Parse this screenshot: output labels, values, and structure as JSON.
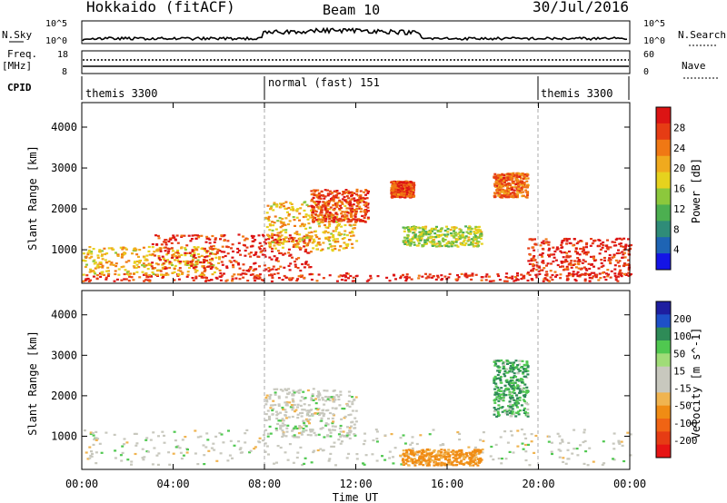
{
  "header": {
    "title": "Hokkaido (fitACF)",
    "beam": "Beam 10",
    "date": "30/Jul/2016"
  },
  "panels": {
    "nsky": {
      "left_label": "N.Sky",
      "right_label": "N.Search",
      "left_ticks": [
        "10^5",
        "10^0"
      ],
      "right_ticks": [
        "10^5",
        "10^0"
      ]
    },
    "freq": {
      "label_line1": "Freq.",
      "label_line2": "[MHz]",
      "right_label": "Nave",
      "left_ticks": [
        "18",
        "8"
      ],
      "right_ticks": [
        "60",
        "0"
      ]
    },
    "cpid": {
      "label": "CPID",
      "segments": [
        "themis 3300",
        "normal (fast) 151",
        "themis 3300"
      ]
    }
  },
  "axes": {
    "ylabel": "Slant Range [km]",
    "yticks": [
      "1000",
      "2000",
      "3000",
      "4000"
    ],
    "xlabel": "Time UT",
    "xticks": [
      "00:00",
      "04:00",
      "08:00",
      "12:00",
      "16:00",
      "20:00",
      "00:00"
    ]
  },
  "colorbars": {
    "power": {
      "label": "Power [dB]",
      "ticks": [
        "4",
        "8",
        "12",
        "16",
        "20",
        "24",
        "28"
      ],
      "colors": [
        "#1414e6",
        "#1e64b4",
        "#2f8c78",
        "#4caf50",
        "#8cc83c",
        "#e6d21e",
        "#f0aa1e",
        "#f07814",
        "#e63c14",
        "#dc1414"
      ]
    },
    "velocity": {
      "label": "Velocity [m s^-1]",
      "ticks": [
        "200",
        "100",
        "50",
        "15",
        "-15",
        "-50",
        "-100",
        "-200"
      ],
      "colors": [
        "#1e1ea0",
        "#1e50c8",
        "#2e8b57",
        "#50c850",
        "#a0dc78",
        "#c8c8be",
        "#c8c8be",
        "#f0b450",
        "#f08c14",
        "#f06414",
        "#e63c14",
        "#e61414"
      ]
    }
  },
  "chart_data": [
    {
      "type": "heatmap",
      "title": "",
      "xlabel": "Time UT",
      "ylabel": "Slant Range [km]",
      "xlim": [
        0,
        24
      ],
      "ylim": [
        180,
        4600
      ],
      "colorbar": "Power [dB]",
      "regions": [
        {
          "t": [
            0,
            24
          ],
          "r": [
            250,
            450
          ],
          "power": 26
        },
        {
          "t": [
            0,
            6
          ],
          "r": [
            400,
            1100
          ],
          "power": 18
        },
        {
          "t": [
            3,
            10
          ],
          "r": [
            500,
            1400
          ],
          "power": 26
        },
        {
          "t": [
            8,
            12
          ],
          "r": [
            1000,
            2200
          ],
          "power": 18
        },
        {
          "t": [
            10,
            12.5
          ],
          "r": [
            1700,
            2500
          ],
          "power": 24
        },
        {
          "t": [
            13.5,
            14.5
          ],
          "r": [
            2300,
            2700
          ],
          "power": 24
        },
        {
          "t": [
            14,
            17.5
          ],
          "r": [
            1100,
            1600
          ],
          "power": 14
        },
        {
          "t": [
            18,
            19.5
          ],
          "r": [
            2300,
            2900
          ],
          "power": 22
        },
        {
          "t": [
            19.5,
            24
          ],
          "r": [
            400,
            1300
          ],
          "power": 26
        }
      ]
    },
    {
      "type": "heatmap",
      "title": "",
      "xlabel": "Time UT",
      "ylabel": "Slant Range [km]",
      "xlim": [
        0,
        24
      ],
      "ylim": [
        180,
        4600
      ],
      "colorbar": "Velocity [m s^-1]",
      "regions": [
        {
          "t": [
            0,
            24
          ],
          "r": [
            300,
            1200
          ],
          "velocity": 0
        },
        {
          "t": [
            8,
            12
          ],
          "r": [
            1000,
            2200
          ],
          "velocity": 0
        },
        {
          "t": [
            14,
            17.5
          ],
          "r": [
            300,
            700
          ],
          "velocity": -60
        },
        {
          "t": [
            18,
            19.5
          ],
          "r": [
            1500,
            2900
          ],
          "velocity": 30
        }
      ]
    }
  ]
}
